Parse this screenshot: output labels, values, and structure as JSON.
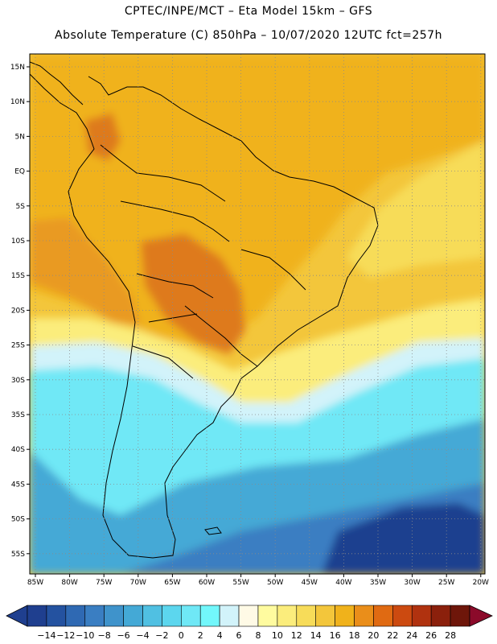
{
  "header": {
    "line1": "CPTEC/INPE/MCT –   Eta Model 15km – GFS",
    "line2": "Absolute Temperature (C) 850hPa – 10/07/2020 12UTC fct=257h"
  },
  "axes": {
    "lat_labels": [
      "15N",
      "10N",
      "5N",
      "EQ",
      "5S",
      "10S",
      "15S",
      "20S",
      "25S",
      "30S",
      "35S",
      "40S",
      "45S",
      "50S",
      "55S"
    ],
    "lon_labels": [
      "85W",
      "80W",
      "75W",
      "70W",
      "65W",
      "60W",
      "55W",
      "50W",
      "45W",
      "40W",
      "35W",
      "30W",
      "25W",
      "20W"
    ]
  },
  "colorbar": {
    "labels": [
      "-14",
      "-12",
      "-10",
      "-8",
      "-6",
      "-4",
      "-2",
      "0",
      "2",
      "4",
      "6",
      "8",
      "10",
      "12",
      "14",
      "16",
      "18",
      "20",
      "22",
      "24",
      "26",
      "28"
    ],
    "colors": [
      "#1f3f8f",
      "#2452a0",
      "#2f69b3",
      "#3a7ec2",
      "#3f93cb",
      "#44a9d6",
      "#50c0e2",
      "#5cd6ee",
      "#6fe8f6",
      "#72f7fb",
      "#d2f3fa",
      "#fffae6",
      "#fffb9f",
      "#fbed7c",
      "#f7dc59",
      "#f3c63b",
      "#f0b21b",
      "#ea8e1a",
      "#e06a12",
      "#cc4a10",
      "#b0320f",
      "#8b200c",
      "#6e160a"
    ],
    "unit": "C"
  },
  "map": {
    "region": "South America",
    "colors": {
      "hot_core": "#de7a1e",
      "warm": "#e99a22",
      "orange": "#f0b21b",
      "gold": "#f3c63b",
      "yellow": "#f7dc59",
      "pale_yellow": "#fbed7c",
      "cream": "#fffae6",
      "ice": "#d2f3fa",
      "cyan": "#6fe8f6",
      "aqua": "#50c0e2",
      "sky": "#44a9d6",
      "blue": "#3a7ec2",
      "deep_blue": "#2452a0",
      "navy": "#1f3f8f"
    }
  }
}
